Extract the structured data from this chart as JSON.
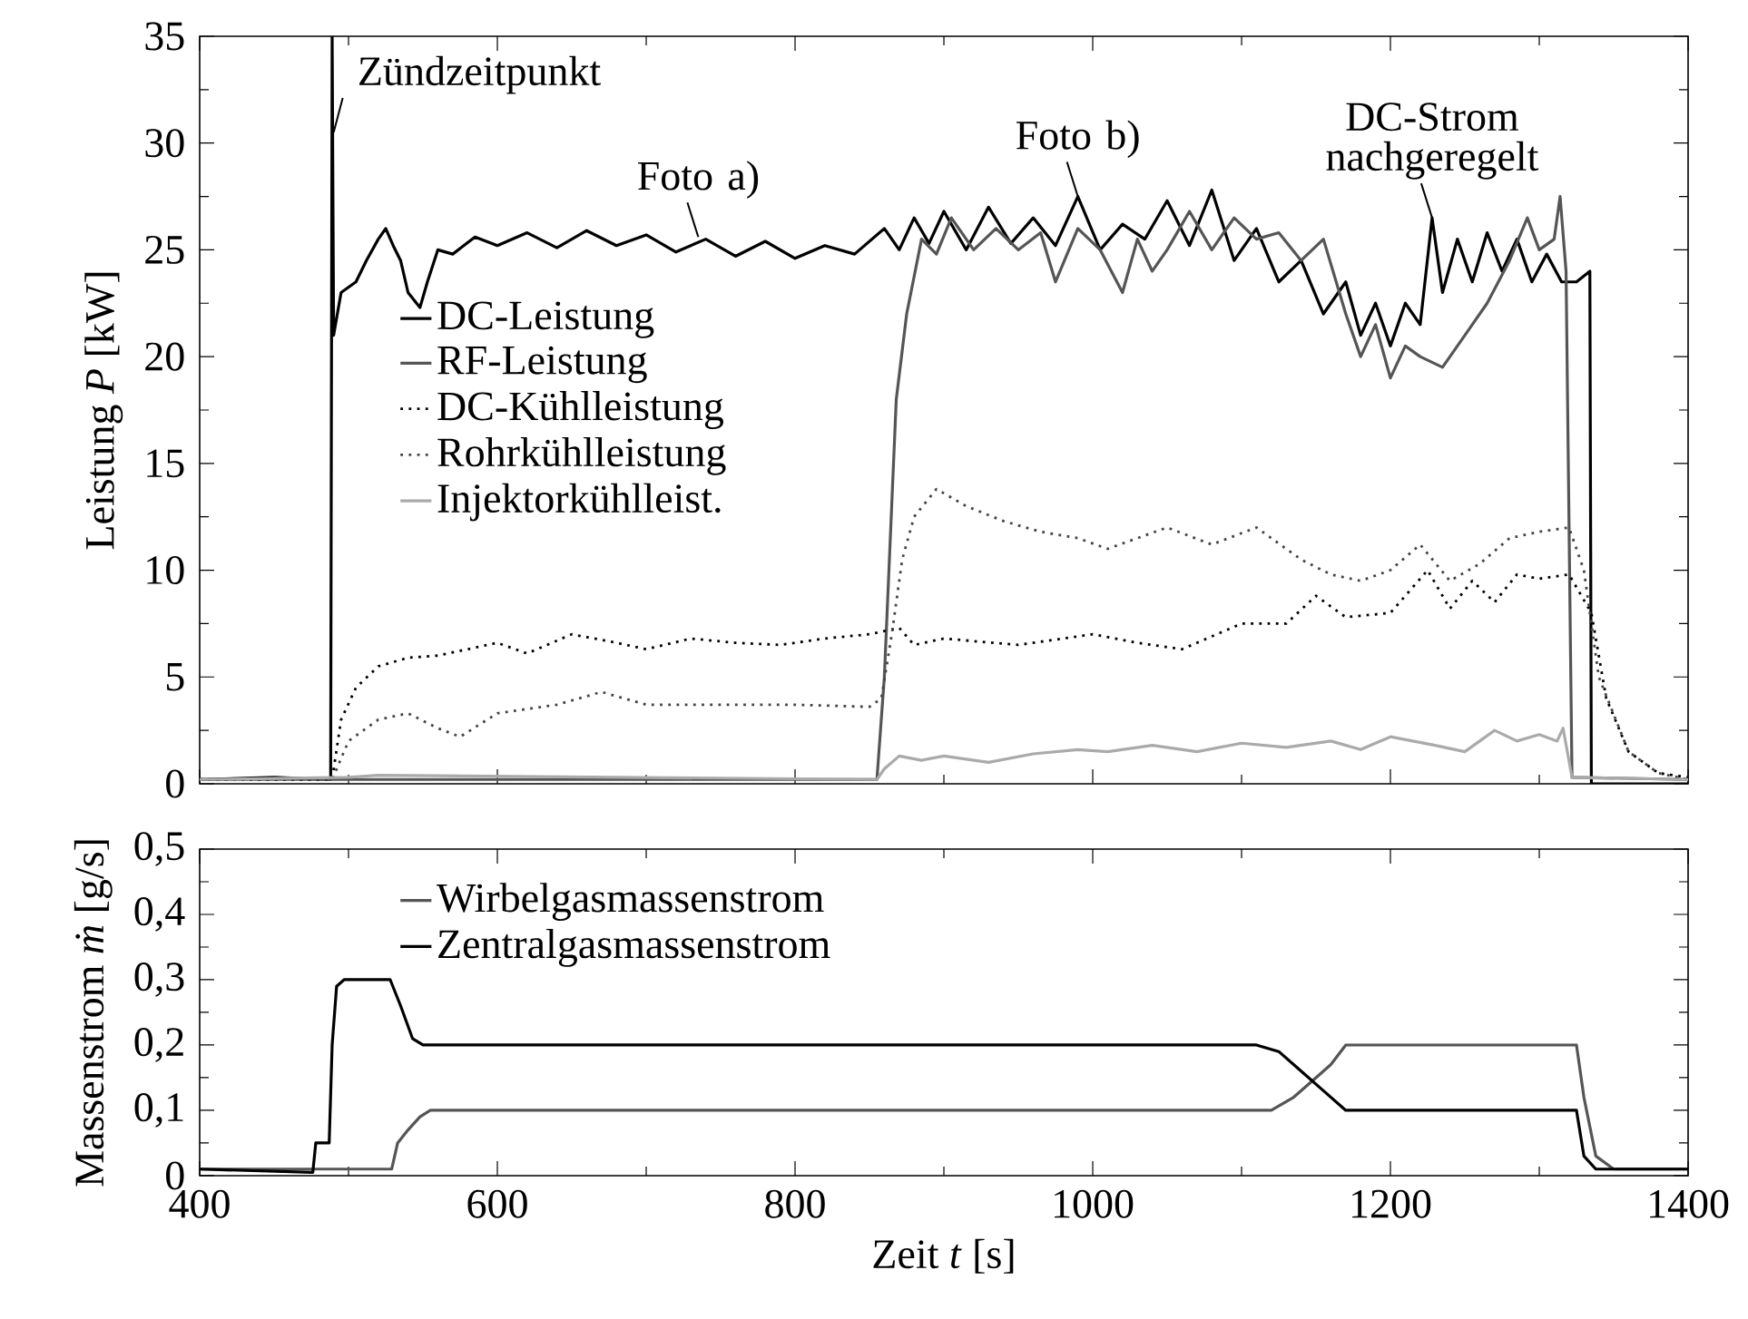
{
  "chart_data": [
    {
      "type": "line",
      "ylabel": "Leistung *P* [kW]",
      "xlim": [
        400,
        1400
      ],
      "ylim": [
        0,
        35
      ],
      "xticks": [
        400,
        600,
        800,
        1000,
        1200,
        1400
      ],
      "yticks": [
        0,
        5,
        10,
        15,
        20,
        25,
        30,
        35
      ],
      "tick_labels": "y",
      "legend": "center left",
      "series": [
        {
          "name": "DC-Leistung",
          "color": "#000000",
          "line_style": "solid",
          "x": [
            400,
            450,
            488,
            489,
            490,
            495,
            505,
            512,
            520,
            525,
            530,
            535,
            540,
            548,
            553,
            560,
            570,
            585,
            600,
            620,
            640,
            660,
            680,
            700,
            720,
            740,
            760,
            780,
            800,
            820,
            840,
            860,
            870,
            880,
            890,
            900,
            915,
            930,
            945,
            960,
            975,
            990,
            1005,
            1020,
            1035,
            1050,
            1065,
            1080,
            1095,
            1110,
            1125,
            1140,
            1155,
            1170,
            1180,
            1190,
            1200,
            1210,
            1220,
            1228,
            1235,
            1245,
            1255,
            1265,
            1275,
            1285,
            1295,
            1305,
            1315,
            1325,
            1334,
            1335,
            1400
          ],
          "values": [
            0.2,
            0.3,
            0.2,
            35,
            21,
            23,
            23.5,
            24.5,
            25.5,
            26,
            25.2,
            24.5,
            23,
            22.3,
            23.5,
            25,
            24.8,
            25.6,
            25.2,
            25.8,
            25.1,
            25.9,
            25.2,
            25.7,
            24.9,
            25.5,
            24.7,
            25.4,
            24.6,
            25.2,
            24.8,
            26,
            25,
            26.5,
            25.3,
            26.8,
            25,
            27,
            25.3,
            26.5,
            25.2,
            27.5,
            25,
            26.2,
            25.5,
            27.3,
            25.2,
            27.8,
            24.5,
            26,
            23.5,
            24.5,
            22,
            23.5,
            21,
            22.5,
            20.5,
            22.5,
            21.5,
            26.5,
            23,
            25.5,
            23.5,
            25.8,
            24,
            25.5,
            23.5,
            24.8,
            23.5,
            23.5,
            24,
            0,
            0
          ]
        },
        {
          "name": "RF-Leistung",
          "color": "#555555",
          "line_style": "solid",
          "x": [
            400,
            855,
            860,
            868,
            875,
            885,
            895,
            905,
            920,
            935,
            950,
            965,
            975,
            990,
            1005,
            1020,
            1030,
            1040,
            1050,
            1065,
            1080,
            1095,
            1110,
            1125,
            1140,
            1155,
            1170,
            1180,
            1190,
            1200,
            1210,
            1220,
            1235,
            1250,
            1265,
            1280,
            1292,
            1300,
            1310,
            1314,
            1318,
            1322,
            1400
          ],
          "values": [
            0.2,
            0.2,
            5,
            18,
            22,
            25.5,
            24.8,
            26.5,
            25,
            26,
            25,
            25.8,
            23.5,
            26,
            25,
            23,
            25.5,
            24,
            25,
            26.8,
            25,
            26.5,
            25.5,
            25.8,
            24.5,
            25.5,
            22,
            20,
            21.5,
            19,
            20.5,
            20,
            19.5,
            21,
            22.5,
            24.5,
            26.5,
            25,
            25.5,
            27.5,
            24,
            0.3,
            0.2
          ]
        },
        {
          "name": "DC-Kühlleistung",
          "color": "#000000",
          "line_style": "dotted",
          "x": [
            400,
            489,
            495,
            505,
            520,
            540,
            560,
            580,
            600,
            620,
            650,
            680,
            700,
            730,
            760,
            790,
            820,
            850,
            870,
            880,
            900,
            950,
            1000,
            1030,
            1060,
            1100,
            1130,
            1150,
            1170,
            1200,
            1225,
            1240,
            1255,
            1270,
            1285,
            1300,
            1320,
            1335,
            1345,
            1360,
            1380,
            1400
          ],
          "values": [
            0.2,
            0.2,
            3,
            4.5,
            5.5,
            5.9,
            6,
            6.3,
            6.6,
            6.1,
            7,
            6.6,
            6.3,
            6.8,
            6.6,
            6.5,
            6.8,
            7,
            7.3,
            6.5,
            6.8,
            6.5,
            7,
            6.6,
            6.3,
            7.5,
            7.5,
            8.8,
            7.8,
            8,
            10,
            8.2,
            9.5,
            8.5,
            9.8,
            9.6,
            9.8,
            8,
            4,
            1.5,
            0.5,
            0.3
          ]
        },
        {
          "name": "Rohrkühlleistung",
          "color": "#444444",
          "line_style": "dotted",
          "x": [
            400,
            489,
            500,
            520,
            540,
            560,
            575,
            600,
            640,
            670,
            700,
            750,
            800,
            850,
            858,
            865,
            872,
            880,
            895,
            915,
            940,
            965,
            990,
            1010,
            1050,
            1080,
            1110,
            1140,
            1160,
            1180,
            1200,
            1220,
            1240,
            1260,
            1280,
            1300,
            1320,
            1330,
            1340,
            1360,
            1380,
            1400
          ],
          "values": [
            0.2,
            0.2,
            2,
            3,
            3.3,
            2.6,
            2.2,
            3.3,
            3.7,
            4.3,
            3.7,
            3.7,
            3.7,
            3.6,
            4,
            7,
            10.5,
            12.5,
            13.8,
            13,
            12.3,
            11.8,
            11.5,
            11,
            12,
            11.2,
            12,
            10.5,
            9.8,
            9.5,
            10,
            11.2,
            9.5,
            10.3,
            11.5,
            11.8,
            12,
            10,
            5,
            1.5,
            0.5,
            0.2
          ]
        },
        {
          "name": "Injektorkühlleist.",
          "color": "#aaaaaa",
          "line_style": "solid",
          "x": [
            400,
            500,
            520,
            855,
            860,
            870,
            885,
            900,
            930,
            960,
            990,
            1010,
            1040,
            1070,
            1100,
            1130,
            1160,
            1180,
            1200,
            1230,
            1250,
            1270,
            1285,
            1300,
            1312,
            1316,
            1322,
            1400
          ],
          "values": [
            0.2,
            0.3,
            0.4,
            0.2,
            0.7,
            1.3,
            1.1,
            1.3,
            1.0,
            1.4,
            1.6,
            1.5,
            1.8,
            1.5,
            1.9,
            1.7,
            2.0,
            1.6,
            2.2,
            1.8,
            1.5,
            2.5,
            2.0,
            2.3,
            2.0,
            2.6,
            0.3,
            0.2
          ]
        }
      ],
      "annotations": [
        {
          "text": "Zündzeitpunkt",
          "x": 490,
          "y": 30.5
        },
        {
          "text": "Foto a)",
          "x": 735,
          "y": 25.6
        },
        {
          "text": "Foto b)",
          "x": 990,
          "y": 27.5
        },
        {
          "text": "DC-Strom nachgeregelt",
          "x": 1228,
          "y": 26.5
        }
      ]
    },
    {
      "type": "line",
      "xlabel": "Zeit *t* [s]",
      "ylabel": "Massenstrom *ṁ* [g/s]",
      "xlim": [
        400,
        1400
      ],
      "ylim": [
        0,
        0.5
      ],
      "xticks": [
        400,
        600,
        800,
        1000,
        1200,
        1400
      ],
      "yticks": [
        {
          "value": 0,
          "label": "0"
        },
        {
          "value": 0.1,
          "label": "0,1"
        },
        {
          "value": 0.2,
          "label": "0,2"
        },
        {
          "value": 0.3,
          "label": "0,3"
        },
        {
          "value": 0.4,
          "label": "0,4"
        },
        {
          "value": 0.5,
          "label": "0,5"
        }
      ],
      "legend": "top left",
      "series": [
        {
          "name": "Wirbelgasmassenstrom",
          "color": "#555555",
          "line_style": "solid",
          "x": [
            400,
            529,
            533,
            540,
            548,
            555,
            800,
            1000,
            1120,
            1135,
            1150,
            1160,
            1170,
            1325,
            1330,
            1338,
            1350,
            1400
          ],
          "values": [
            0.01,
            0.01,
            0.05,
            0.07,
            0.09,
            0.1,
            0.1,
            0.1,
            0.1,
            0.12,
            0.15,
            0.17,
            0.2,
            0.2,
            0.12,
            0.03,
            0.01,
            0.01
          ]
        },
        {
          "name": "Zentralgasmassenstrom",
          "color": "#000000",
          "line_style": "solid",
          "x": [
            400,
            476,
            478,
            487,
            489,
            492,
            497,
            528,
            535,
            543,
            550,
            800,
            1000,
            1110,
            1125,
            1140,
            1155,
            1170,
            1325,
            1330,
            1338,
            1400
          ],
          "values": [
            0.01,
            0.005,
            0.05,
            0.05,
            0.2,
            0.29,
            0.3,
            0.3,
            0.26,
            0.21,
            0.2,
            0.2,
            0.2,
            0.2,
            0.19,
            0.16,
            0.13,
            0.1,
            0.1,
            0.03,
            0.01,
            0.01
          ]
        }
      ]
    }
  ]
}
